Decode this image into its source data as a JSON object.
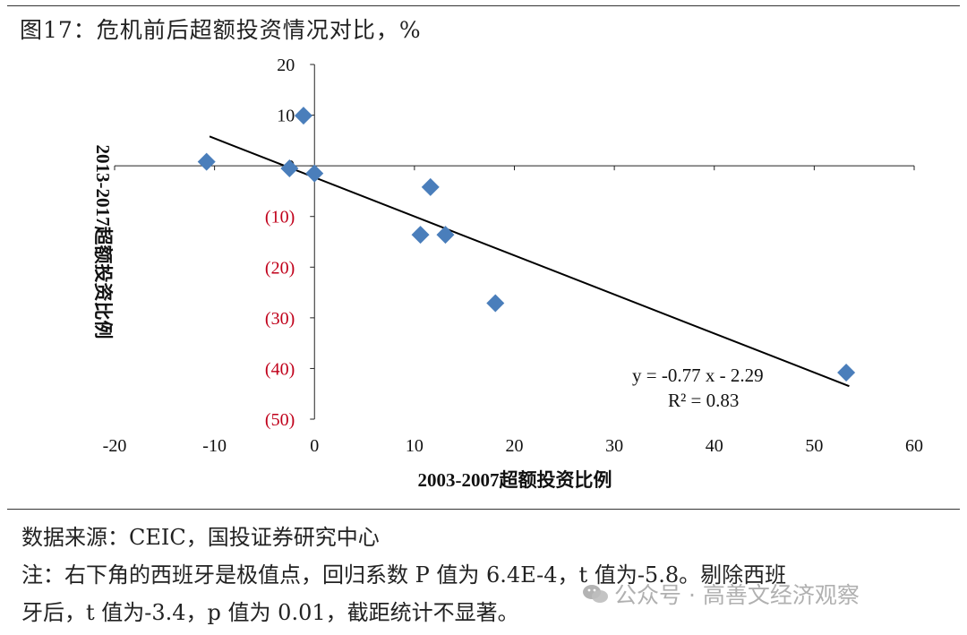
{
  "figure": {
    "title": "图17：危机前后超额投资情况对比，%"
  },
  "chart_data": {
    "type": "scatter",
    "xlabel": "2003-2007超额投资比例",
    "ylabel": "2013-2017超额投资比例",
    "xlim": [
      -20,
      60
    ],
    "ylim": [
      -50,
      20
    ],
    "x_ticks": [
      "-20",
      "-10",
      "0",
      "10",
      "20",
      "30",
      "40",
      "50",
      "60"
    ],
    "y_ticks": [
      "20",
      "10",
      "0",
      "(10)",
      "(20)",
      "(30)",
      "(40)",
      "(50)"
    ],
    "negative_tick_color": "#c0001a",
    "marker_color": "#4a7ebb",
    "marker": "diamond",
    "points": [
      {
        "x": -10.8,
        "y": 0.8
      },
      {
        "x": -1.1,
        "y": 9.9
      },
      {
        "x": -2.5,
        "y": -0.5
      },
      {
        "x": 0.0,
        "y": -1.5
      },
      {
        "x": 10.6,
        "y": -13.6
      },
      {
        "x": 11.6,
        "y": -4.2
      },
      {
        "x": 13.1,
        "y": -13.6
      },
      {
        "x": 18.1,
        "y": -27.1
      },
      {
        "x": 53.2,
        "y": -40.8
      }
    ],
    "trendline": {
      "slope": -0.77,
      "intercept": -2.29,
      "x_range": [
        -10.5,
        53.5
      ],
      "equation": "y = -0.77 x - 2.29",
      "r_squared": "R² = 0.83"
    },
    "grid": false
  },
  "footer": {
    "source": "数据来源：CEIC，国投证券研究中心",
    "note_line1": "注：右下角的西班牙是极值点，回归系数 P 值为 6.4E-4，t 值为-5.8。剔除西班",
    "note_line2": "牙后，t 值为-3.4，p 值为 0.01，截距统计不显著。",
    "watermark": "公众号 · 高善文经济观察"
  }
}
